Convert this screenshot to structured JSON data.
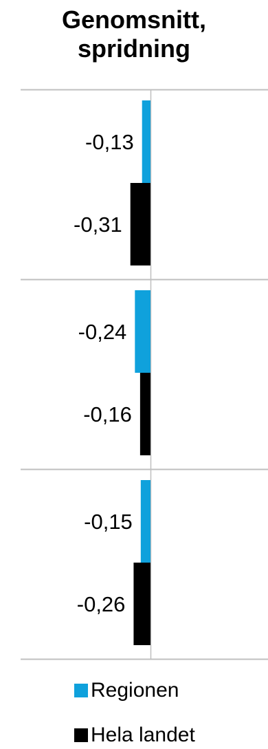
{
  "chart_data": {
    "type": "bar",
    "orientation": "horizontal",
    "title": "Genomsnitt, spridning",
    "groups": 3,
    "series": [
      {
        "name": "Regionen",
        "color": "#0fa1dc",
        "values": [
          -0.13,
          -0.24,
          -0.15
        ],
        "labels": [
          "-0,13",
          "-0,24",
          "-0,15"
        ]
      },
      {
        "name": "Hela landet",
        "color": "#000000",
        "values": [
          -0.31,
          -0.16,
          -0.26
        ],
        "labels": [
          "-0,31",
          "-0,16",
          "-0,26"
        ]
      }
    ],
    "xlim": [
      -0.4,
      0.4
    ],
    "grid": true,
    "legend_position": "bottom"
  }
}
